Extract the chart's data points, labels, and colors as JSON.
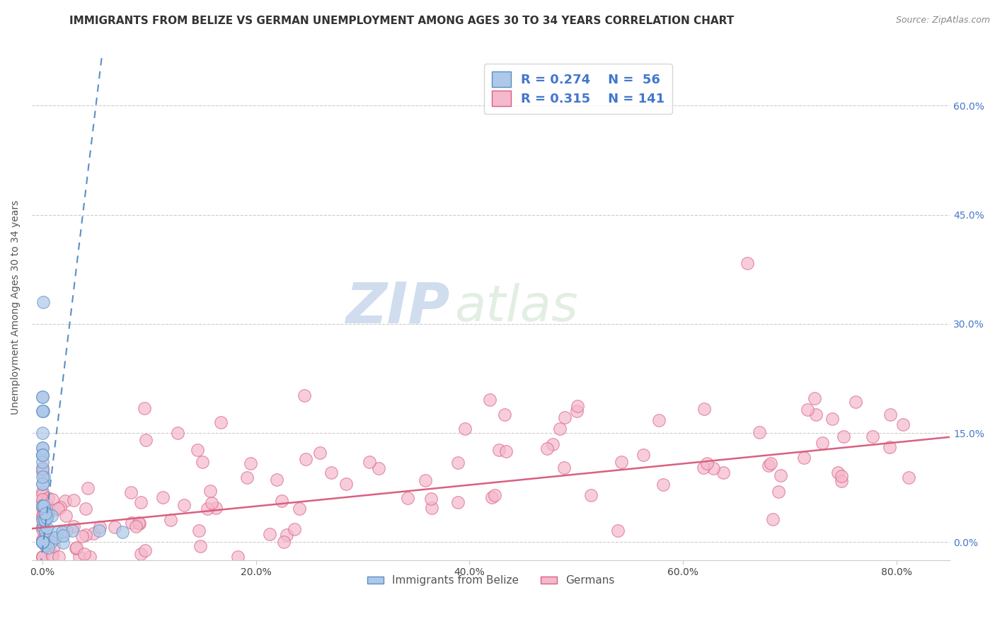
{
  "title": "IMMIGRANTS FROM BELIZE VS GERMAN UNEMPLOYMENT AMONG AGES 30 TO 34 YEARS CORRELATION CHART",
  "source_text": "Source: ZipAtlas.com",
  "ylabel": "Unemployment Among Ages 30 to 34 years",
  "xlabel_ticks": [
    "0.0%",
    "20.0%",
    "40.0%",
    "60.0%",
    "80.0%"
  ],
  "xlabel_vals": [
    0.0,
    0.2,
    0.4,
    0.6,
    0.8
  ],
  "ylabel_ticks": [
    "0.0%",
    "15.0%",
    "30.0%",
    "45.0%",
    "60.0%"
  ],
  "ylabel_vals": [
    0.0,
    0.15,
    0.3,
    0.45,
    0.6
  ],
  "xlim": [
    -0.01,
    0.85
  ],
  "ylim": [
    -0.025,
    0.67
  ],
  "belize_color": "#adc8e8",
  "german_color": "#f5b8cc",
  "belize_edge": "#5b8ec4",
  "german_edge": "#d96080",
  "trend_belize_color": "#5b8ec4",
  "trend_german_color": "#d96080",
  "legend_r_belize": "R = 0.274",
  "legend_n_belize": "N =  56",
  "legend_r_german": "R = 0.315",
  "legend_n_german": "N = 141",
  "watermark_zip": "ZIP",
  "watermark_atlas": "atlas",
  "grid_color": "#cccccc",
  "background_color": "#ffffff",
  "title_fontsize": 11,
  "label_fontsize": 10,
  "tick_fontsize": 10,
  "legend_fontsize": 13
}
